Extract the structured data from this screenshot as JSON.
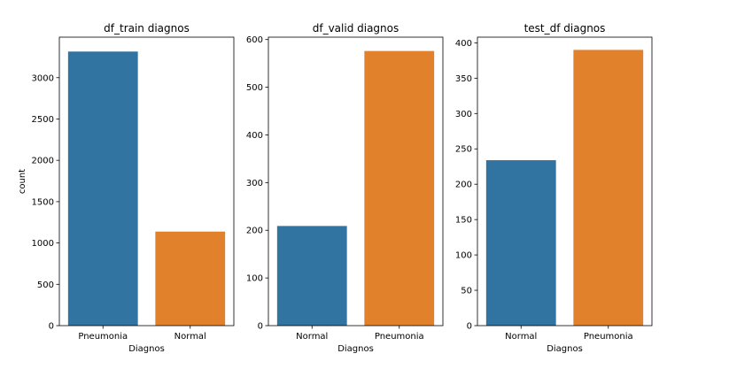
{
  "chart_data": [
    {
      "type": "bar",
      "title": "df_train diagnos",
      "xlabel": "Diagnos",
      "ylabel": "count",
      "categories": [
        "Pneumonia",
        "Normal"
      ],
      "values": [
        3316,
        1138
      ],
      "colors": [
        "#3274a1",
        "#e1812c"
      ],
      "ylim": [
        0,
        3490
      ],
      "yticks": [
        0,
        500,
        1000,
        1500,
        2000,
        2500,
        3000
      ],
      "grid": false
    },
    {
      "type": "bar",
      "title": "df_valid diagnos",
      "xlabel": "Diagnos",
      "ylabel": "",
      "categories": [
        "Normal",
        "Pneumonia"
      ],
      "values": [
        209,
        576
      ],
      "colors": [
        "#3274a1",
        "#e1812c"
      ],
      "ylim": [
        0,
        605
      ],
      "yticks": [
        0,
        100,
        200,
        300,
        400,
        500,
        600
      ],
      "grid": false
    },
    {
      "type": "bar",
      "title": "test_df diagnos",
      "xlabel": "Diagnos",
      "ylabel": "",
      "categories": [
        "Normal",
        "Pneumonia"
      ],
      "values": [
        234,
        390
      ],
      "colors": [
        "#3274a1",
        "#e1812c"
      ],
      "ylim": [
        0,
        408
      ],
      "yticks": [
        0,
        50,
        100,
        150,
        200,
        250,
        300,
        350,
        400
      ],
      "grid": false
    }
  ]
}
